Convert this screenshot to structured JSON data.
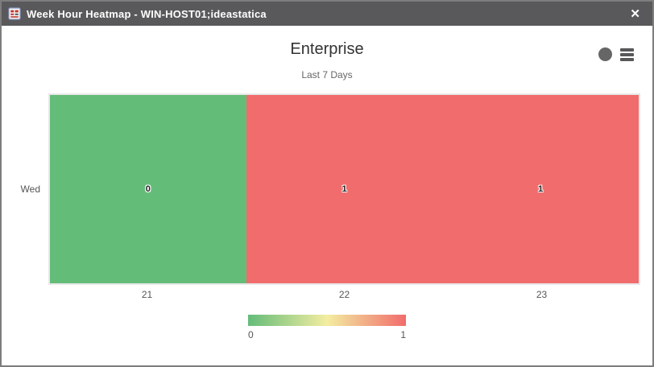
{
  "window": {
    "title": "Week Hour Heatmap - WIN-HOST01;ideastatica",
    "close_label": "✕",
    "titlebar_icon": "report-grid-icon"
  },
  "toolbar": {
    "circle_icon": "series-dot-icon",
    "menu_icon": "hamburger-menu-icon"
  },
  "chart_data": {
    "type": "heatmap",
    "title": "Enterprise",
    "subtitle": "Last 7 Days",
    "x_categories": [
      "21",
      "22",
      "23"
    ],
    "y_categories": [
      "Wed"
    ],
    "values": [
      [
        0,
        1,
        1
      ]
    ],
    "colorscale": {
      "min": 0,
      "max": 1,
      "min_color": "#64bc79",
      "mid_color": "#f3eda1",
      "max_color": "#f16c6c"
    },
    "legend": {
      "position": "bottom",
      "min_label": "0",
      "max_label": "1"
    },
    "layout": {
      "grid": false,
      "xaxis_side": "bottom",
      "yaxis_side": "left",
      "legend_position": "bottom-center"
    }
  },
  "colors": {
    "titlebar_bg": "#59595c",
    "window_border": "#7d7d7d",
    "title_text": "#333333",
    "subtitle_text": "#666666",
    "axis_text": "#555555",
    "icon_gray": "#666666",
    "plot_frame": "#e9e9e9",
    "cell_value_text": "#222222"
  }
}
